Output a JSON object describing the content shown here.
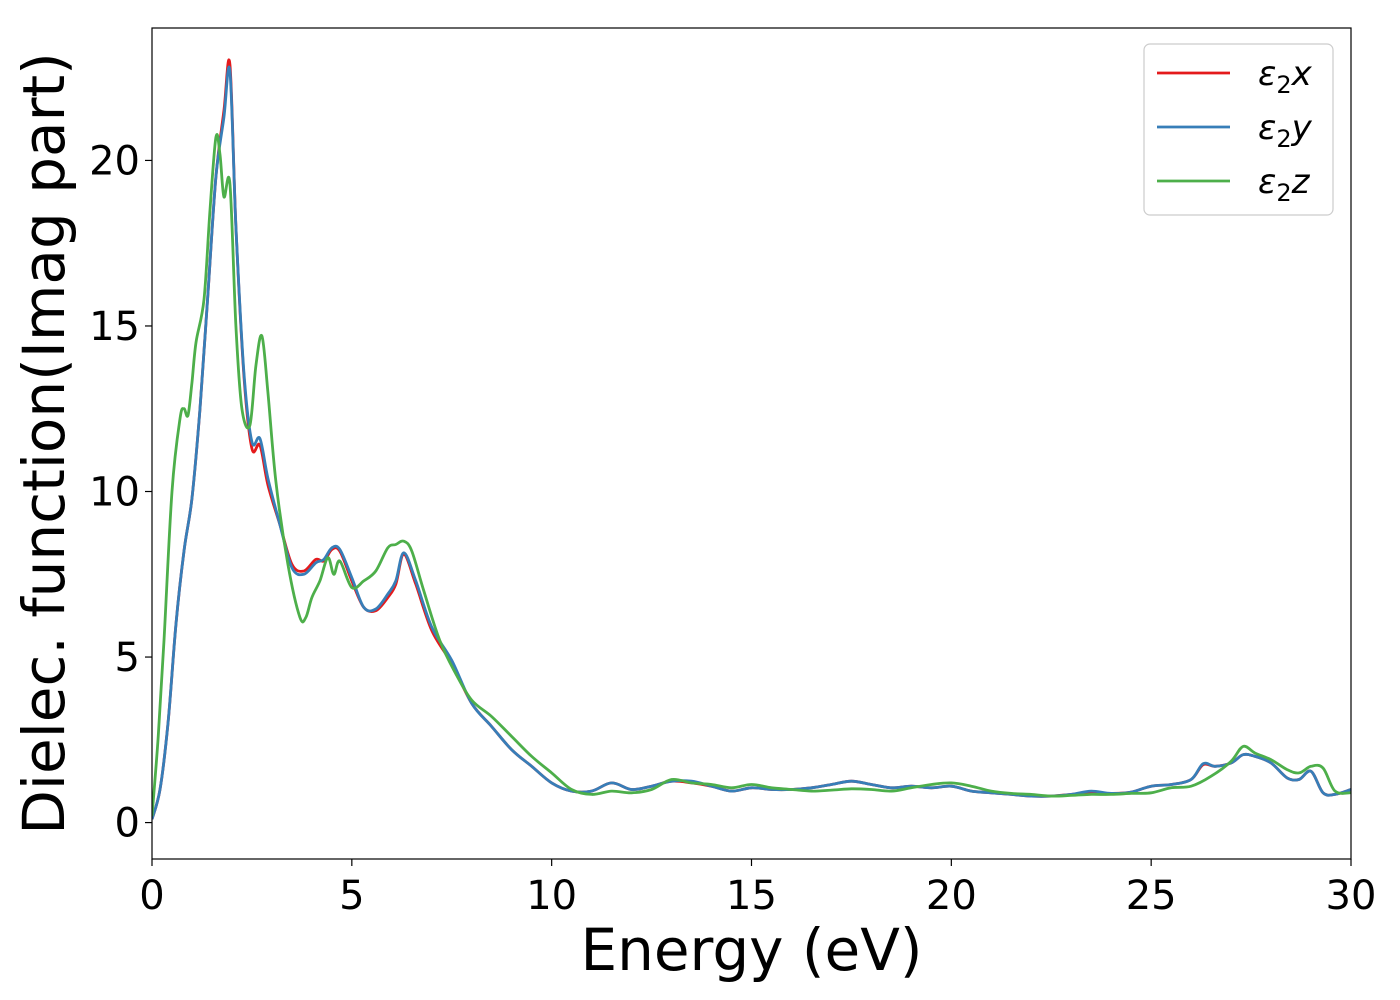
{
  "chart_data": {
    "type": "line",
    "xlabel": "Energy (eV)",
    "ylabel": "Dielec. function(Imag part)",
    "xlim": [
      0,
      30
    ],
    "ylim": [
      -1.1,
      24
    ],
    "xticks": [
      "0",
      "5",
      "10",
      "15",
      "20",
      "25",
      "30"
    ],
    "yticks": [
      "0",
      "5",
      "10",
      "15",
      "20"
    ],
    "grid": false,
    "legend_position": "upper right",
    "series": [
      {
        "name": "ε₂x",
        "label_main": "ε",
        "label_sub": "2",
        "label_suffix": "x",
        "color": "#e41a1c",
        "x": [
          0,
          0.2,
          0.4,
          0.6,
          0.8,
          1.0,
          1.2,
          1.4,
          1.6,
          1.8,
          1.95,
          2.1,
          2.3,
          2.5,
          2.7,
          2.9,
          3.2,
          3.5,
          3.8,
          4.1,
          4.3,
          4.5,
          4.7,
          5.0,
          5.3,
          5.6,
          5.9,
          6.1,
          6.3,
          6.6,
          7.0,
          7.5,
          8.0,
          8.5,
          9.0,
          9.5,
          10.0,
          10.5,
          11.0,
          11.5,
          12.0,
          12.5,
          13.0,
          13.5,
          14.0,
          14.5,
          15.0,
          15.5,
          16.0,
          16.5,
          17.0,
          17.5,
          18.0,
          18.5,
          19.0,
          19.5,
          20.0,
          20.5,
          21.0,
          21.5,
          22.0,
          22.5,
          23.0,
          23.5,
          24.0,
          24.5,
          25.0,
          25.5,
          26.0,
          26.3,
          26.6,
          27.0,
          27.3,
          27.6,
          28.0,
          28.4,
          28.7,
          29.0,
          29.3,
          29.6,
          30.0
        ],
        "y": [
          0.1,
          1.0,
          3.0,
          6.0,
          8.2,
          9.8,
          12.5,
          16.0,
          19.5,
          21.5,
          22.9,
          18.0,
          13.5,
          11.3,
          11.4,
          10.2,
          9.0,
          7.8,
          7.6,
          7.95,
          7.9,
          8.25,
          8.2,
          7.3,
          6.5,
          6.4,
          6.8,
          7.2,
          8.1,
          7.2,
          5.8,
          4.8,
          3.6,
          2.9,
          2.2,
          1.7,
          1.2,
          0.95,
          0.95,
          1.2,
          1.0,
          1.1,
          1.25,
          1.2,
          1.1,
          0.95,
          1.05,
          1.0,
          1.0,
          1.05,
          1.15,
          1.25,
          1.15,
          1.05,
          1.1,
          1.05,
          1.1,
          0.95,
          0.9,
          0.85,
          0.8,
          0.8,
          0.85,
          0.9,
          0.88,
          0.92,
          1.1,
          1.15,
          1.3,
          1.75,
          1.7,
          1.8,
          2.05,
          2.0,
          1.8,
          1.35,
          1.3,
          1.55,
          0.9,
          0.85,
          1.0
        ]
      },
      {
        "name": "ε₂y",
        "label_main": "ε",
        "label_sub": "2",
        "label_suffix": "y",
        "color": "#377eb8",
        "x": [
          0,
          0.2,
          0.4,
          0.6,
          0.8,
          1.0,
          1.2,
          1.4,
          1.6,
          1.8,
          1.95,
          2.1,
          2.3,
          2.5,
          2.7,
          2.9,
          3.2,
          3.5,
          3.8,
          4.1,
          4.3,
          4.5,
          4.7,
          5.0,
          5.3,
          5.6,
          5.9,
          6.1,
          6.3,
          6.6,
          7.0,
          7.5,
          8.0,
          8.5,
          9.0,
          9.5,
          10.0,
          10.5,
          11.0,
          11.5,
          12.0,
          12.5,
          13.0,
          13.5,
          14.0,
          14.5,
          15.0,
          15.5,
          16.0,
          16.5,
          17.0,
          17.5,
          18.0,
          18.5,
          19.0,
          19.5,
          20.0,
          20.5,
          21.0,
          21.5,
          22.0,
          22.5,
          23.0,
          23.5,
          24.0,
          24.5,
          25.0,
          25.5,
          26.0,
          26.3,
          26.6,
          27.0,
          27.3,
          27.6,
          28.0,
          28.4,
          28.7,
          29.0,
          29.3,
          29.6,
          30.0
        ],
        "y": [
          0.1,
          1.0,
          3.0,
          6.0,
          8.2,
          9.8,
          12.5,
          16.0,
          19.5,
          21.3,
          22.7,
          18.0,
          13.6,
          11.5,
          11.6,
          10.4,
          9.0,
          7.7,
          7.5,
          7.85,
          7.95,
          8.3,
          8.25,
          7.4,
          6.5,
          6.45,
          6.9,
          7.3,
          8.15,
          7.3,
          5.9,
          4.9,
          3.6,
          2.9,
          2.2,
          1.7,
          1.2,
          0.95,
          0.95,
          1.2,
          1.0,
          1.1,
          1.25,
          1.25,
          1.1,
          0.95,
          1.05,
          1.0,
          1.0,
          1.05,
          1.15,
          1.25,
          1.15,
          1.05,
          1.1,
          1.05,
          1.1,
          0.95,
          0.9,
          0.85,
          0.8,
          0.8,
          0.85,
          0.95,
          0.88,
          0.92,
          1.1,
          1.15,
          1.3,
          1.78,
          1.7,
          1.8,
          2.05,
          2.0,
          1.8,
          1.35,
          1.3,
          1.55,
          0.9,
          0.85,
          1.0
        ]
      },
      {
        "name": "ε₂z",
        "label_main": "ε",
        "label_sub": "2",
        "label_suffix": "z",
        "color": "#4daf4a",
        "x": [
          0,
          0.15,
          0.3,
          0.5,
          0.7,
          0.8,
          0.9,
          1.0,
          1.1,
          1.3,
          1.45,
          1.6,
          1.7,
          1.8,
          1.95,
          2.1,
          2.25,
          2.45,
          2.6,
          2.75,
          2.9,
          3.1,
          3.4,
          3.7,
          3.85,
          4.0,
          4.2,
          4.4,
          4.55,
          4.7,
          5.0,
          5.3,
          5.6,
          5.9,
          6.1,
          6.3,
          6.5,
          6.8,
          7.2,
          7.6,
          8.0,
          8.5,
          9.0,
          9.5,
          10.0,
          10.5,
          11.0,
          11.5,
          12.0,
          12.5,
          13.0,
          13.5,
          14.0,
          14.5,
          15.0,
          15.5,
          16.0,
          16.5,
          17.0,
          17.5,
          18.0,
          18.5,
          19.0,
          19.5,
          20.0,
          20.5,
          21.0,
          21.5,
          22.0,
          22.5,
          23.0,
          23.5,
          24.0,
          24.5,
          25.0,
          25.5,
          26.0,
          26.5,
          27.0,
          27.3,
          27.6,
          28.0,
          28.4,
          28.7,
          29.0,
          29.3,
          29.6,
          30.0
        ],
        "y": [
          0.2,
          2.5,
          5.5,
          10.0,
          12.2,
          12.5,
          12.3,
          13.3,
          14.5,
          15.8,
          18.5,
          20.7,
          20.2,
          18.9,
          19.3,
          15.0,
          12.5,
          12.0,
          13.8,
          14.7,
          13.0,
          10.3,
          7.8,
          6.2,
          6.2,
          6.8,
          7.3,
          8.0,
          7.5,
          7.9,
          7.1,
          7.3,
          7.6,
          8.3,
          8.4,
          8.5,
          8.2,
          7.0,
          5.5,
          4.5,
          3.7,
          3.2,
          2.6,
          2.0,
          1.5,
          1.0,
          0.85,
          0.95,
          0.9,
          1.0,
          1.3,
          1.2,
          1.15,
          1.05,
          1.15,
          1.05,
          1.0,
          0.95,
          0.98,
          1.02,
          1.0,
          0.95,
          1.05,
          1.15,
          1.2,
          1.1,
          0.95,
          0.88,
          0.85,
          0.8,
          0.82,
          0.85,
          0.85,
          0.88,
          0.9,
          1.05,
          1.1,
          1.4,
          1.85,
          2.3,
          2.1,
          1.9,
          1.6,
          1.5,
          1.7,
          1.65,
          0.95,
          0.9
        ]
      }
    ]
  }
}
